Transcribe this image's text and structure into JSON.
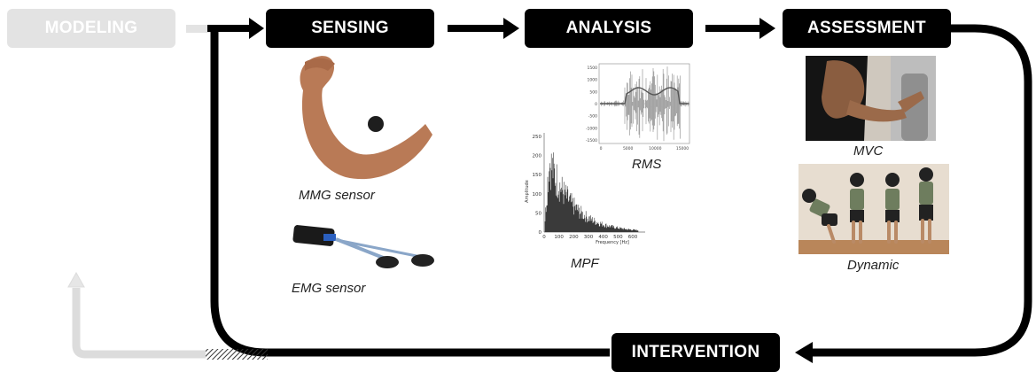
{
  "stages": {
    "modeling": "MODELING",
    "sensing": "SENSING",
    "analysis": "ANALYSIS",
    "assessment": "ASSESSMENT",
    "intervention": "INTERVENTION"
  },
  "captions": {
    "mmg": "MMG sensor",
    "emg": "EMG sensor",
    "rms": "RMS",
    "mpf": "MPF",
    "mvc": "MVC",
    "dynamic": "Dynamic"
  },
  "mpf_plot": {
    "ylabel": "Amplitude",
    "xlabel": "Frequency [Hz]",
    "yticks": [
      "250",
      "200",
      "150",
      "100",
      "50",
      "0"
    ],
    "xticks": [
      "0",
      "100",
      "200",
      "300",
      "400",
      "500",
      "600"
    ]
  },
  "rms_plot": {
    "yticks": [
      "1500",
      "1000",
      "500",
      "0",
      "-500",
      "-1000",
      "-1500"
    ],
    "xticks": [
      "0",
      "5000",
      "10000",
      "15000"
    ]
  },
  "colors": {
    "dark": "#000000",
    "faded": "#e3e3e3"
  }
}
